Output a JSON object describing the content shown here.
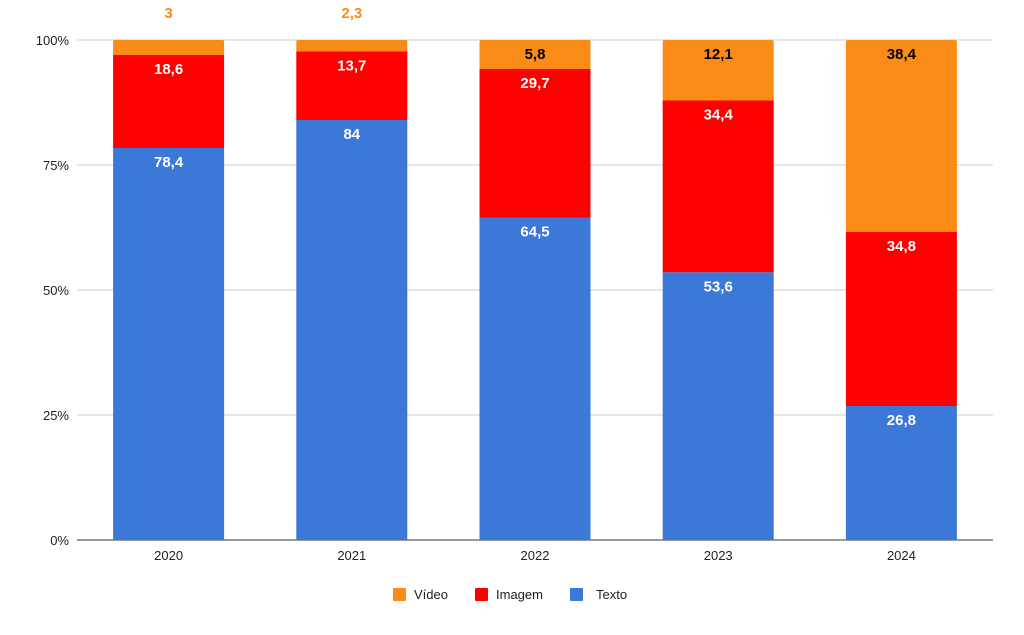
{
  "chart_data": {
    "type": "bar",
    "stacked": true,
    "percent_stacked": true,
    "title": "",
    "xlabel": "",
    "ylabel": "",
    "categories": [
      "2020",
      "2021",
      "2022",
      "2023",
      "2024"
    ],
    "series": [
      {
        "name": "Texto",
        "color": "#3C78D8",
        "values": [
          78.4,
          84,
          64.5,
          53.6,
          26.8
        ],
        "labels": [
          "78,4",
          "84",
          "64,5",
          "53,6",
          "26,8"
        ]
      },
      {
        "name": "Imagem",
        "color": "#FF0000",
        "values": [
          18.6,
          13.7,
          29.7,
          34.4,
          34.8
        ],
        "labels": [
          "18,6",
          "13,7",
          "29,7",
          "34,4",
          "34,8"
        ]
      },
      {
        "name": "Vídeo",
        "color": "#FA8B16",
        "values": [
          3,
          2.3,
          5.8,
          12.1,
          38.4
        ],
        "labels": [
          "3",
          "2,3",
          "5,8",
          "12,1",
          "38,4"
        ]
      }
    ],
    "legend_order": [
      "Vídeo",
      "Imagem",
      "Texto"
    ],
    "yticks": [
      "0%",
      "25%",
      "50%",
      "75%",
      "100%"
    ],
    "ylim": [
      0,
      100
    ],
    "grid": true,
    "legend_position": "bottom"
  }
}
